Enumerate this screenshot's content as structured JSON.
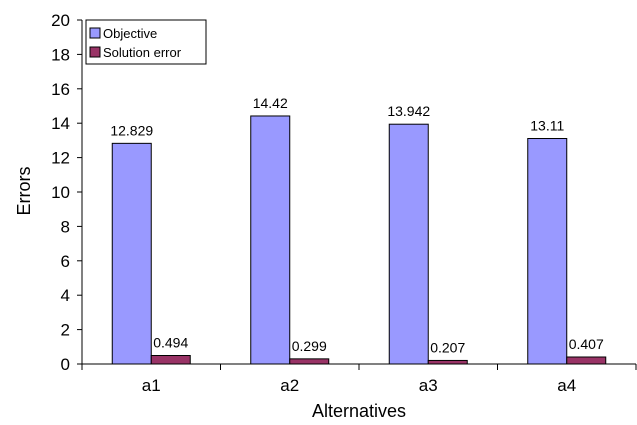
{
  "chart_data": {
    "type": "bar",
    "title": "",
    "xlabel": "Alternatives",
    "ylabel": "Errors",
    "categories": [
      "a1",
      "a2",
      "a3",
      "a4"
    ],
    "ylim": [
      0,
      20
    ],
    "yticks": [
      0,
      2,
      4,
      6,
      8,
      10,
      12,
      14,
      16,
      18,
      20
    ],
    "ytick_labels": [
      "0",
      "2",
      "4",
      "6",
      "8",
      "10",
      "12",
      "14",
      "16",
      "18",
      "20"
    ],
    "grid": false,
    "legend_position": "top-left",
    "series": [
      {
        "name": "Objective",
        "color": "#9999ff",
        "values": [
          12.829,
          14.42,
          13.942,
          13.11
        ],
        "labels": [
          "12.829",
          "14.42",
          "13.942",
          "13.11"
        ]
      },
      {
        "name": "Solution error",
        "color": "#993366",
        "values": [
          0.494,
          0.299,
          0.207,
          0.407
        ],
        "labels": [
          "0.494",
          "0.299",
          "0.207",
          "0.407"
        ]
      }
    ]
  }
}
